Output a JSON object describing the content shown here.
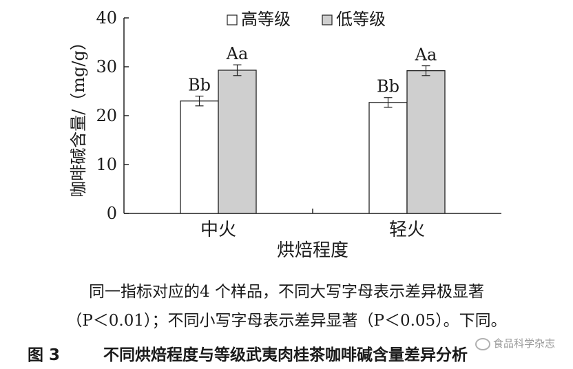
{
  "chart_data": {
    "type": "bar",
    "categories": [
      "中火",
      "轻火"
    ],
    "series": [
      {
        "name": "高等级",
        "values": [
          23.0,
          22.7
        ],
        "errors": [
          1.0,
          1.0
        ],
        "labels": [
          "Bb",
          "Bb"
        ],
        "color": "#ffffff"
      },
      {
        "name": "低等级",
        "values": [
          29.3,
          29.2
        ],
        "errors": [
          1.1,
          1.0
        ],
        "labels": [
          "Aa",
          "Aa"
        ],
        "color": "#cfcfcf"
      }
    ],
    "xlabel": "烘焙程度",
    "ylabel": "咖啡碱含量/（mg/g）",
    "ylim": [
      0,
      40
    ],
    "yticks": [
      0,
      10,
      20,
      30,
      40
    ],
    "legend_position": "top-center",
    "grid": false
  },
  "note_line1": "同一指标对应的4 个样品，不同大写字母表示差异极显著",
  "note_line2": "（P＜0.01）；不同小写字母表示差异显著（P＜0.05）。下同。",
  "caption_number": "图 3",
  "caption_title": "不同烘焙程度与等级武夷肉桂茶咖啡碱含量差异分析",
  "watermark": "食品科学杂志"
}
